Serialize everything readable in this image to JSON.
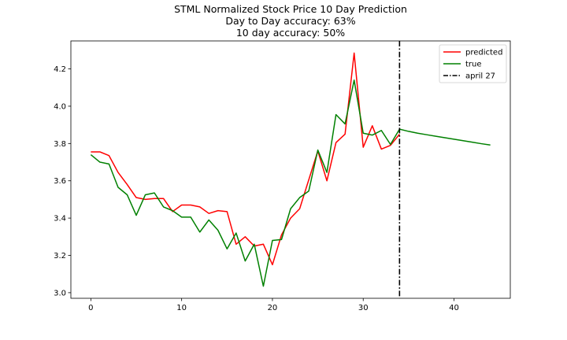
{
  "chart_data": {
    "type": "line",
    "title_lines": [
      "STML Normalized Stock Price 10 Day Prediction",
      "Day to Day accuracy: 63%",
      "10 day accuracy: 50%"
    ],
    "xlabel": "",
    "ylabel": "",
    "xlim": [
      -2.2,
      46.2
    ],
    "ylim": [
      2.97,
      4.35
    ],
    "xticks": [
      0,
      10,
      20,
      30,
      40
    ],
    "xtick_labels": [
      "0",
      "10",
      "20",
      "30",
      "40"
    ],
    "yticks": [
      3.0,
      3.2,
      3.4,
      3.6,
      3.8,
      4.0,
      4.2
    ],
    "ytick_labels": [
      "3.0",
      "3.2",
      "3.4",
      "3.6",
      "3.8",
      "4.0",
      "4.2"
    ],
    "grid": false,
    "legend_position": "top-right",
    "series": [
      {
        "name": "predicted",
        "color": "#ff0000",
        "x": [
          0,
          1,
          2,
          3,
          4,
          5,
          6,
          7,
          8,
          9,
          10,
          11,
          12,
          13,
          14,
          15,
          16,
          17,
          18,
          19,
          20,
          21,
          22,
          23,
          24,
          25,
          26,
          27,
          28,
          29,
          30,
          31,
          32,
          33,
          34
        ],
        "y": [
          3.755,
          3.755,
          3.735,
          3.645,
          3.58,
          3.51,
          3.5,
          3.505,
          3.505,
          3.435,
          3.47,
          3.47,
          3.46,
          3.425,
          3.44,
          3.435,
          3.26,
          3.3,
          3.25,
          3.26,
          3.15,
          3.31,
          3.4,
          3.45,
          3.605,
          3.76,
          3.6,
          3.805,
          3.85,
          4.285,
          3.78,
          3.895,
          3.77,
          3.79,
          3.85
        ]
      },
      {
        "name": "true",
        "color": "#008000",
        "x": [
          0,
          1,
          2,
          3,
          4,
          5,
          6,
          7,
          8,
          9,
          10,
          11,
          12,
          13,
          14,
          15,
          16,
          17,
          18,
          19,
          20,
          21,
          22,
          23,
          24,
          25,
          26,
          27,
          28,
          29,
          30,
          31,
          32,
          33,
          34,
          35,
          36,
          37,
          38,
          39,
          40,
          41,
          42,
          43,
          44
        ],
        "y": [
          3.74,
          3.7,
          3.69,
          3.565,
          3.525,
          3.415,
          3.525,
          3.535,
          3.46,
          3.44,
          3.405,
          3.405,
          3.325,
          3.39,
          3.335,
          3.235,
          3.32,
          3.17,
          3.26,
          3.035,
          3.28,
          3.285,
          3.45,
          3.51,
          3.545,
          3.765,
          3.645,
          3.955,
          3.905,
          4.14,
          3.855,
          3.845,
          3.87,
          3.795,
          3.877,
          3.865,
          3.855,
          3.847,
          3.839,
          3.831,
          3.823,
          3.815,
          3.807,
          3.799,
          3.792
        ]
      }
    ],
    "vline": {
      "name": "april 27",
      "x": 34,
      "color": "#000000",
      "style": "dash-dot"
    }
  }
}
